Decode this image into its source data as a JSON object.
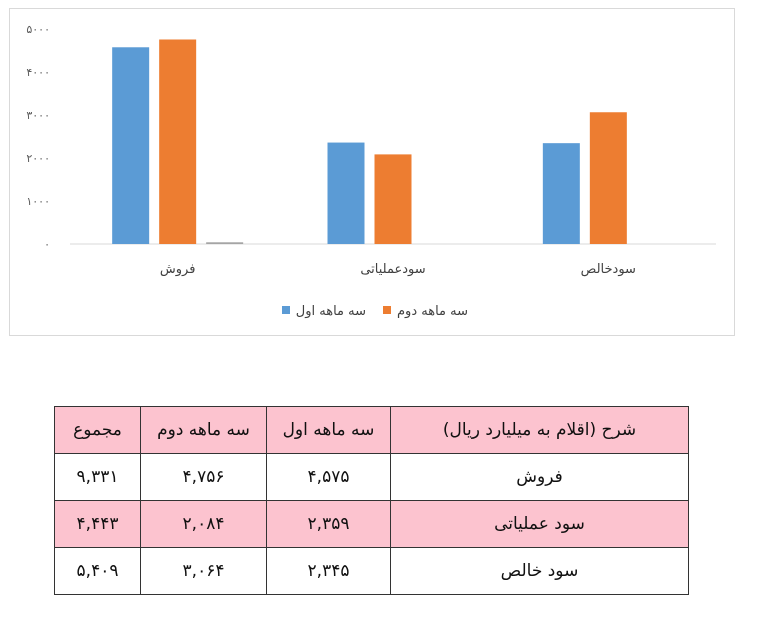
{
  "chart_data": {
    "type": "bar",
    "categories": [
      "فروش",
      "سودعملیاتی",
      "سودخالص"
    ],
    "series": [
      {
        "name": "سه ماهه اول",
        "values": [
          4575,
          2359,
          2345
        ],
        "color": "#5b9bd5"
      },
      {
        "name": "سه ماهه دوم",
        "values": [
          4756,
          2084,
          3064
        ],
        "color": "#ed7d31"
      },
      {
        "name": "",
        "values": [
          40,
          0,
          0
        ],
        "color": "#a5a5a5"
      }
    ],
    "ylim": [
      0,
      5000
    ],
    "yticks": [
      0,
      1000,
      2000,
      3000,
      4000,
      5000
    ],
    "ytick_labels": [
      "۰",
      "۱۰۰۰",
      "۲۰۰۰",
      "۳۰۰۰",
      "۴۰۰۰",
      "۵۰۰۰"
    ],
    "grid": false,
    "legend_position": "bottom"
  },
  "table": {
    "headers": [
      "شرح (اقلام به میلیارد ریال)",
      "سه ماهه اول",
      "سه ماهه دوم",
      "مجموع"
    ],
    "rows": [
      [
        "فروش",
        "۴,۵۷۵",
        "۴,۷۵۶",
        "۹,۳۳۱"
      ],
      [
        "سود عملیاتی",
        "۲,۳۵۹",
        "۲,۰۸۴",
        "۴,۴۴۳"
      ],
      [
        "سود خالص",
        "۲,۳۴۵",
        "۳,۰۶۴",
        "۵,۴۰۹"
      ]
    ],
    "highlight_color": "#fcc3cf"
  }
}
